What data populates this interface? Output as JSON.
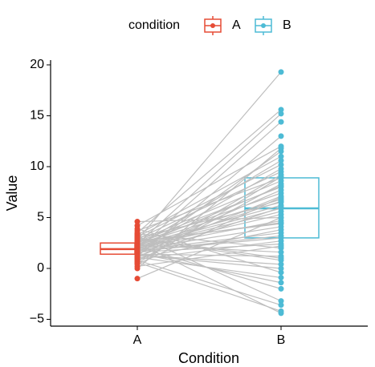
{
  "chart_data": {
    "type": "paired_box",
    "x_label": "Condition",
    "y_label": "Value",
    "legend_title": "condition",
    "legend_position": "top",
    "categories": [
      "A",
      "B"
    ],
    "ylim": [
      -5.67,
      20.47
    ],
    "yticks": [
      {
        "value": -5,
        "label": "−5"
      },
      0,
      5,
      10,
      15,
      20
    ],
    "line_color": "#bebebe",
    "series": [
      {
        "name": "A",
        "color": "#e64b35",
        "values": [
          4.6,
          4.2,
          3.9,
          3.7,
          3.5,
          3.4,
          3.3,
          3.2,
          3.1,
          3.0,
          2.9,
          2.9,
          2.8,
          2.7,
          2.7,
          2.6,
          2.5,
          2.5,
          2.4,
          2.4,
          2.3,
          2.3,
          2.2,
          2.2,
          2.1,
          2.1,
          2.0,
          2.0,
          1.9,
          1.9,
          1.8,
          1.8,
          1.7,
          1.7,
          1.6,
          1.6,
          1.5,
          1.5,
          1.4,
          1.4,
          1.3,
          1.3,
          1.2,
          1.1,
          1.0,
          1.0,
          0.9,
          0.8,
          0.7,
          0.6,
          0.5,
          0.4,
          0.2,
          0.0,
          -1.0,
          1.9,
          2.6,
          1.2,
          3.0,
          2.2
        ]
      },
      {
        "name": "B",
        "color": "#4dbbd5",
        "values": [
          5.0,
          12.0,
          -0.4,
          8.9,
          15.6,
          2.0,
          11.0,
          -3.2,
          10.2,
          6.5,
          9.5,
          0.8,
          19.3,
          8.6,
          4.4,
          8.0,
          -4.4,
          7.4,
          15.2,
          6.8,
          1.6,
          6.2,
          10.6,
          5.9,
          5.6,
          -2.0,
          5.3,
          4.7,
          14.4,
          4.1,
          9.8,
          3.5,
          3.2,
          3.0,
          7.7,
          2.4,
          11.5,
          -1.4,
          1.2,
          7.1,
          0.4,
          0.0,
          6.0,
          -0.9,
          3.8,
          9.2,
          2.7,
          -3.6,
          8.3,
          -4.2,
          9.0,
          7.0,
          2.2,
          11.8,
          5.0,
          6.6,
          4.5,
          13.0,
          1.0,
          8.1
        ]
      }
    ],
    "boxes": [
      {
        "q1": 1.4,
        "median": 1.9,
        "q3": 2.5
      },
      {
        "q1": 3.0,
        "median": 5.9,
        "q3": 8.9
      }
    ]
  }
}
